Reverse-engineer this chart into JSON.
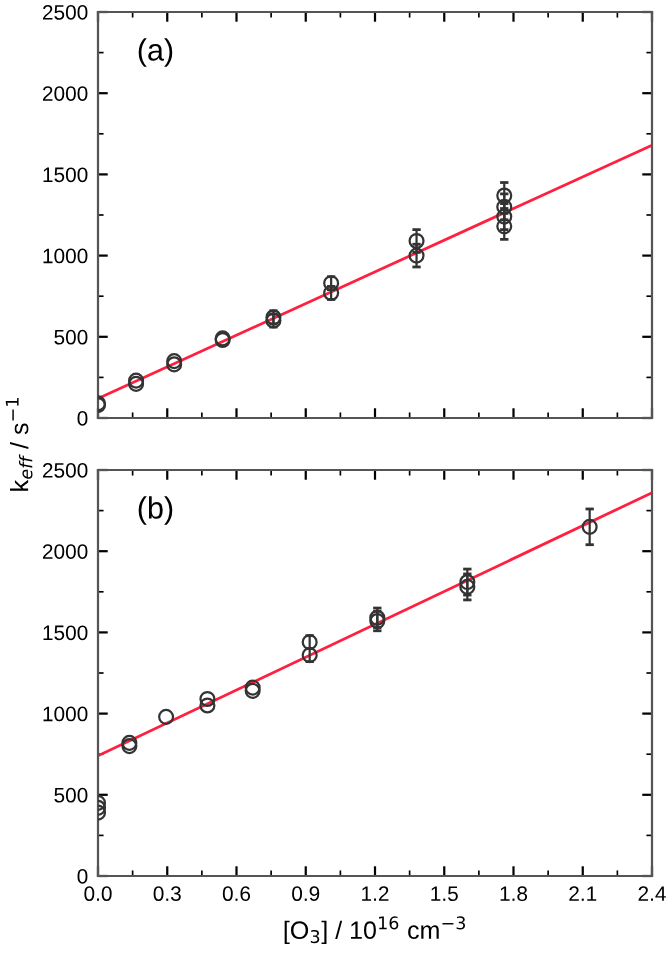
{
  "chart_data": [
    {
      "type": "scatter",
      "ylabel": "k$_{eff}$ / s$^{−1}$",
      "annotations": [
        "(a)"
      ],
      "tick_labels": "y",
      "grid": false,
      "legend": false,
      "xlim": [
        0,
        2.4
      ],
      "xticks": [
        0,
        0.3,
        0.6,
        0.9,
        1.2,
        1.5,
        1.8,
        2.1,
        2.4
      ],
      "ylim": [
        0,
        2500
      ],
      "yticks": [
        0,
        500,
        1000,
        1500,
        2000,
        2500
      ],
      "series": [
        {
          "marker": "circle",
          "color": "#333333",
          "x": [
            0,
            0,
            0.165,
            0.165,
            0.33,
            0.33,
            0.54,
            0.54,
            0.76,
            0.76,
            1.01,
            1.01,
            1.38,
            1.38,
            1.76,
            1.76,
            1.76,
            1.76
          ],
          "values": [
            80,
            90,
            210,
            230,
            330,
            350,
            480,
            490,
            600,
            620,
            770,
            830,
            1000,
            1090,
            1180,
            1240,
            1300,
            1370
          ],
          "errors": [
            null,
            null,
            null,
            null,
            null,
            null,
            null,
            null,
            40,
            40,
            40,
            40,
            70,
            70,
            80,
            80,
            80,
            80
          ]
        },
        {
          "type": "line",
          "marker": "none",
          "color": "#ff2040",
          "x": [
            0,
            2.4
          ],
          "values": [
            120,
            1680
          ]
        }
      ]
    },
    {
      "type": "scatter",
      "xlabel": "[O$_{3}$] / 10$^{16}$ cm$^{−3}$",
      "annotations": [
        "(b)"
      ],
      "grid": false,
      "legend": false,
      "xlim": [
        0,
        2.4
      ],
      "xticks": [
        {
          "value": 0,
          "label": "0.0"
        },
        0.3,
        0.6,
        0.9,
        1.2,
        1.5,
        1.8,
        2.1,
        2.4
      ],
      "ylim": [
        0,
        2500
      ],
      "yticks": [
        0,
        500,
        1000,
        1500,
        2000,
        2500
      ],
      "series": [
        {
          "marker": "circle",
          "color": "#333333",
          "x": [
            0,
            0,
            0,
            0.136,
            0.136,
            0.295,
            0.474,
            0.474,
            0.67,
            0.67,
            0.917,
            0.917,
            1.21,
            1.21,
            1.6,
            1.6,
            2.13
          ],
          "values": [
            450,
            420,
            390,
            820,
            800,
            980,
            1090,
            1050,
            1160,
            1140,
            1440,
            1360,
            1590,
            1570,
            1810,
            1780,
            2150
          ],
          "errors": [
            null,
            null,
            null,
            null,
            null,
            null,
            null,
            null,
            null,
            null,
            40,
            40,
            60,
            60,
            80,
            80,
            110
          ]
        },
        {
          "type": "line",
          "marker": "none",
          "color": "#ff2040",
          "x": [
            0,
            2.4
          ],
          "values": [
            740,
            2360
          ]
        }
      ]
    }
  ]
}
